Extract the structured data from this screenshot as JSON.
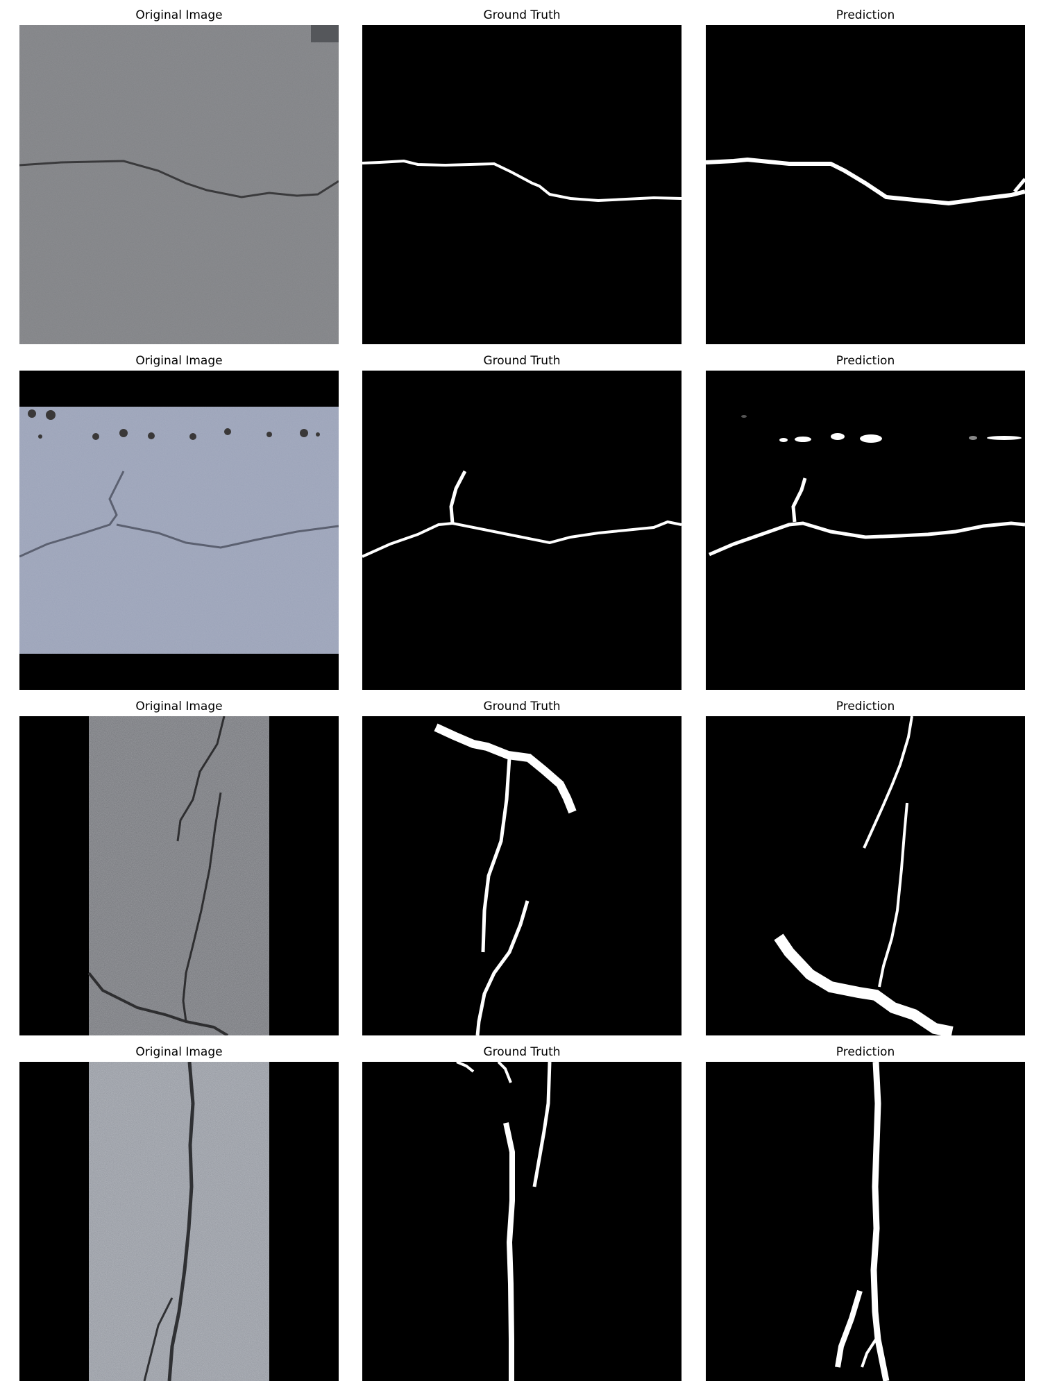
{
  "panel_titles": {
    "original": "Original Image",
    "ground_truth": "Ground Truth",
    "prediction": "Prediction"
  },
  "rows": [
    {
      "original_title": "Original Image",
      "gt_title": "Ground Truth",
      "pred_title": "Prediction"
    },
    {
      "original_title": "Original Image",
      "gt_title": "Ground Truth",
      "pred_title": "Prediction"
    },
    {
      "original_title": "Original Image",
      "gt_title": "Ground Truth",
      "pred_title": "Prediction"
    },
    {
      "original_title": "Original Image",
      "gt_title": "Ground Truth",
      "pred_title": "Prediction"
    }
  ],
  "colors": {
    "mask_background": "#000000",
    "mask_foreground": "#ffffff",
    "pavement_gray": "#7e8083",
    "pavement_blue": "#9aa2b8",
    "pavement_dark": "#6f7176",
    "pavement_light": "#a3a6ad"
  }
}
